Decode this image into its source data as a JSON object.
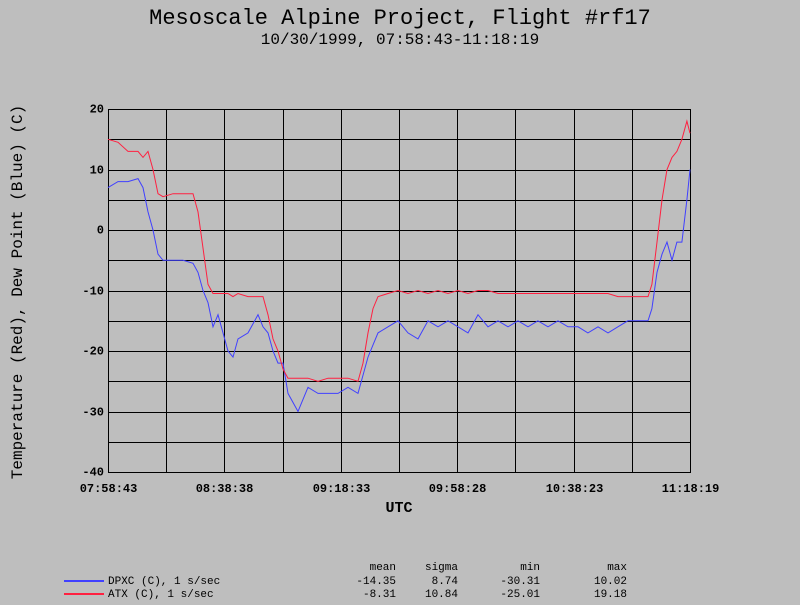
{
  "chart_data": {
    "type": "line",
    "title": "Mesoscale Alpine Project, Flight #rf17",
    "subtitle": "10/30/1999, 07:58:43-11:18:19",
    "x_label": "UTC",
    "y_label": "Temperature (Red), Dew Point (Blue) (C)",
    "x": [
      28723,
      28929,
      29135,
      29340,
      29443,
      29546,
      29649,
      29752,
      29855,
      30061,
      30266,
      30472,
      30575,
      30678,
      30781,
      30884,
      30986,
      31089,
      31192,
      31295,
      31398,
      31604,
      31810,
      31912,
      32015,
      32118,
      32221,
      32324,
      32427,
      32633,
      32838,
      33044,
      33250,
      33456,
      33661,
      33867,
      33970,
      34073,
      34176,
      34279,
      34485,
      34690,
      34896,
      35102,
      35307,
      35513,
      35719,
      35925,
      36130,
      36336,
      36542,
      36748,
      36953,
      37159,
      37365,
      37570,
      37776,
      37982,
      38188,
      38394,
      38599,
      38805,
      39011,
      39216,
      39422,
      39628,
      39834,
      39916,
      40019,
      40122,
      40225,
      40328,
      40430,
      40533,
      40636,
      40699
    ],
    "series": [
      {
        "name": "DPXC (C), 1 s/sec",
        "color": "#4040ff",
        "values": [
          7,
          8,
          8,
          8.5,
          7,
          3,
          0,
          -4,
          -5,
          -5,
          -5,
          -5.5,
          -7,
          -10,
          -12,
          -16,
          -14,
          -17,
          -20,
          -21,
          -18,
          -17,
          -14,
          -16,
          -17,
          -20,
          -22,
          -22,
          -27,
          -30,
          -26,
          -27,
          -27,
          -27,
          -26,
          -27,
          -24,
          -21,
          -19,
          -17,
          -16,
          -15,
          -17,
          -18,
          -15,
          -16,
          -15,
          -16,
          -17,
          -14,
          -16,
          -15,
          -16,
          -15,
          -16,
          -15,
          -16,
          -15,
          -16,
          -16,
          -17,
          -16,
          -17,
          -16,
          -15,
          -15,
          -15,
          -13,
          -7,
          -4,
          -2,
          -5,
          -2,
          -2,
          5,
          10
        ],
        "stats": [
          -14.35,
          8.74,
          -30.31,
          10.02
        ]
      },
      {
        "name": "ATX (C), 1 s/sec",
        "color": "#ff2040",
        "values": [
          15,
          14.5,
          13,
          13,
          12,
          13,
          10,
          6,
          5.5,
          6,
          6,
          6,
          3,
          -3,
          -9,
          -10.5,
          -10.5,
          -10.5,
          -10.5,
          -11,
          -10.5,
          -11,
          -11,
          -11,
          -14,
          -18,
          -20,
          -23,
          -24.5,
          -24.5,
          -24.5,
          -25,
          -24.5,
          -24.5,
          -24.5,
          -25,
          -22,
          -17,
          -13,
          -11,
          -10.5,
          -10,
          -10.5,
          -10,
          -10.5,
          -10,
          -10.5,
          -10,
          -10.5,
          -10,
          -10,
          -10.5,
          -10.5,
          -10.5,
          -10.5,
          -10.5,
          -10.5,
          -10.5,
          -10.5,
          -10.5,
          -10.5,
          -10.5,
          -10.5,
          -11,
          -11,
          -11,
          -11,
          -9,
          -2,
          5,
          10,
          12,
          13,
          15,
          18,
          16
        ],
        "stats": [
          -8.31,
          10.84,
          -25.01,
          19.18
        ]
      }
    ],
    "stats_columns": [
      "mean",
      "sigma",
      "min",
      "max"
    ],
    "xlim": [
      28723,
      40699
    ],
    "xticks": [
      {
        "value": 28723,
        "label": "07:58:43"
      },
      {
        "value": 31118,
        "label": "08:38:38"
      },
      {
        "value": 33513,
        "label": "09:18:33"
      },
      {
        "value": 35908,
        "label": "09:58:28"
      },
      {
        "value": 38303,
        "label": "10:38:23"
      },
      {
        "value": 40699,
        "label": "11:18:19"
      }
    ],
    "xminor": [
      29921,
      32316,
      34711,
      37106,
      39501
    ],
    "ylim": [
      -40,
      20
    ],
    "yticks": [
      -40,
      -30,
      -20,
      -10,
      0,
      10,
      20
    ],
    "yminor": [
      -35,
      -25,
      -15,
      -5,
      5,
      15
    ],
    "grid": true
  }
}
